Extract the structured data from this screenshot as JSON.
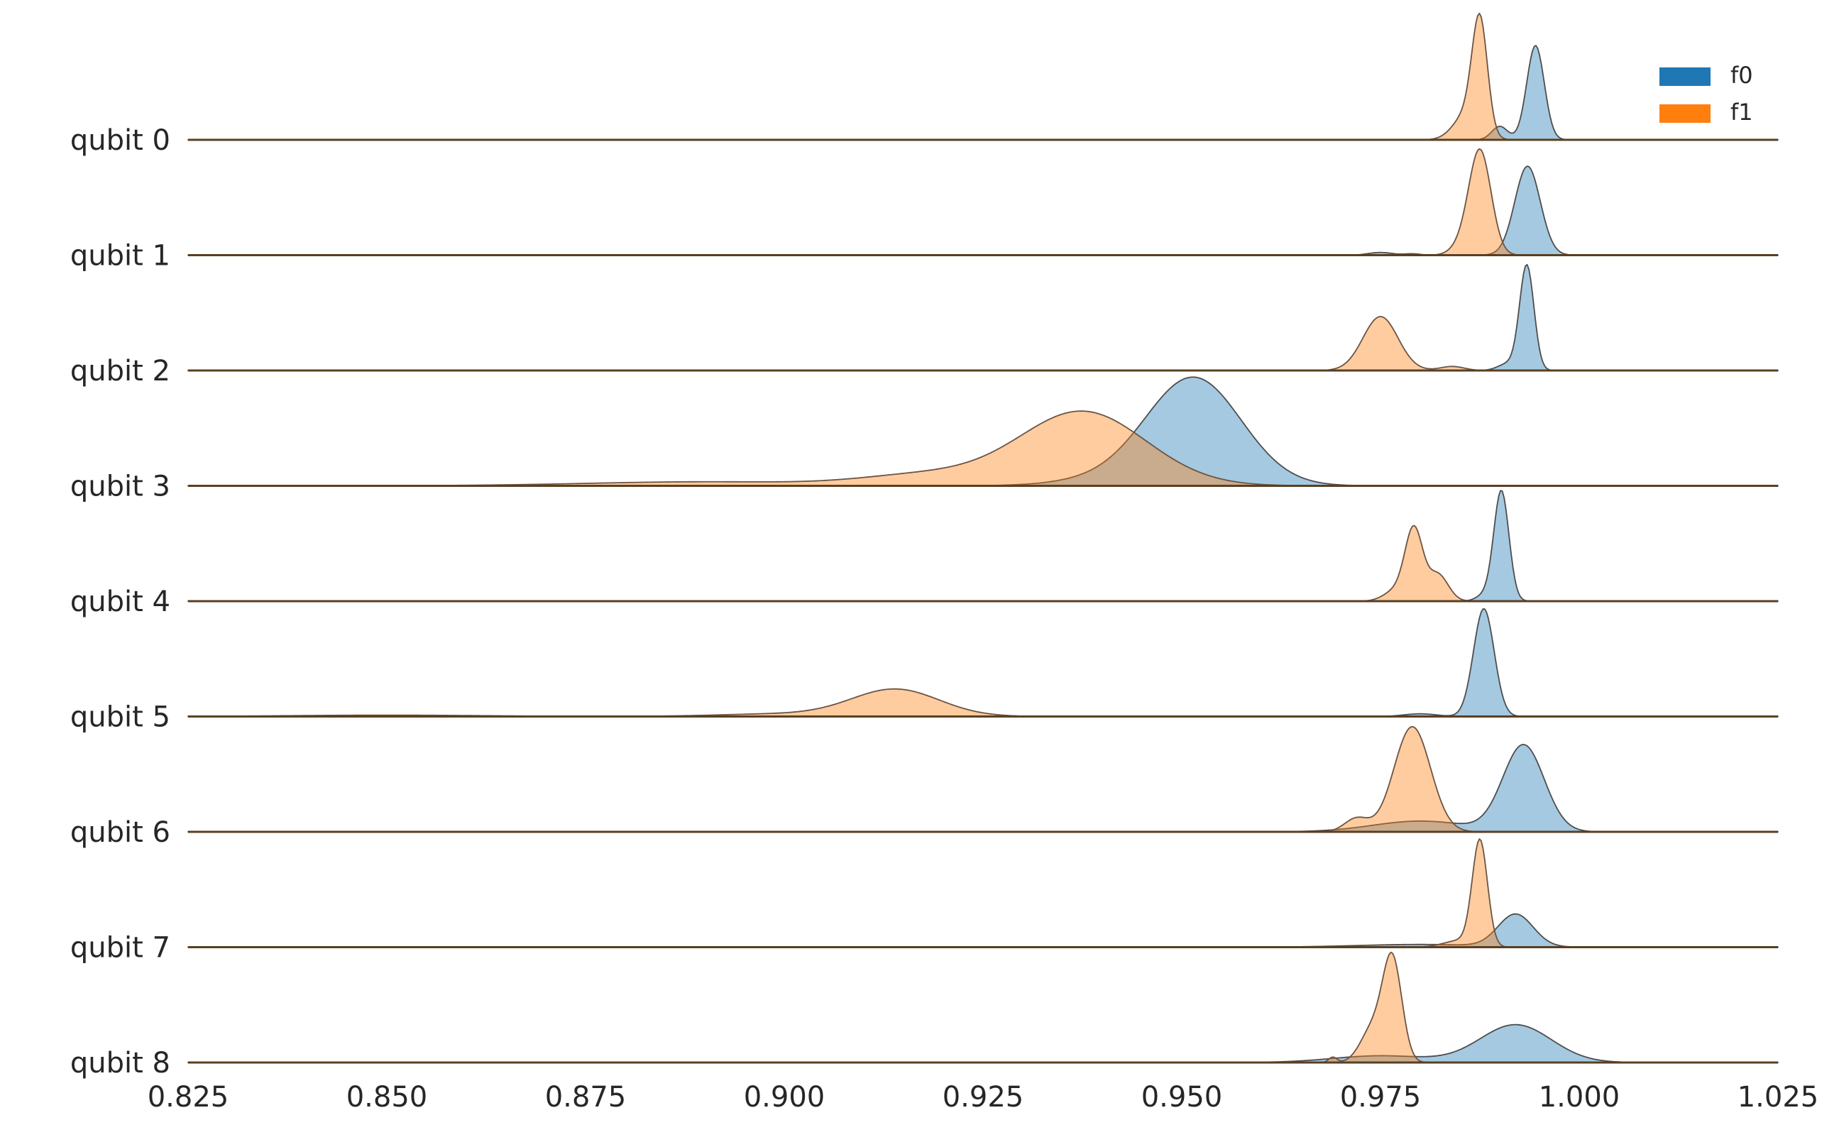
{
  "chart_data": {
    "type": "area",
    "subtype": "ridgeline",
    "title": "",
    "xlabel": "",
    "ylabel": "",
    "xlim": [
      0.825,
      1.025
    ],
    "x_ticks": [
      0.825,
      0.85,
      0.875,
      0.9,
      0.925,
      0.95,
      0.975,
      1.0,
      1.025
    ],
    "x_tick_labels": [
      "0.825",
      "0.850",
      "0.875",
      "0.900",
      "0.925",
      "0.950",
      "0.975",
      "1.000",
      "1.025"
    ],
    "grid": false,
    "legend": {
      "position": "top-right",
      "entries": [
        "f0",
        "f1"
      ]
    },
    "colors": {
      "f0": "#1f77b4",
      "f1": "#ff7f0e",
      "outline": "#4d4d4d"
    },
    "rows": [
      {
        "label": "qubit 0",
        "f0": [
          {
            "mu": 0.9945,
            "sigma": 0.0011,
            "h": 0.7
          },
          {
            "mu": 0.99,
            "sigma": 0.001,
            "h": 0.1
          }
        ],
        "f1": [
          {
            "mu": 0.9875,
            "sigma": 0.00095,
            "h": 0.8
          },
          {
            "mu": 0.986,
            "sigma": 0.0017,
            "h": 0.2
          }
        ]
      },
      {
        "label": "qubit 1",
        "f0": [
          {
            "mu": 0.9935,
            "sigma": 0.0016,
            "h": 0.66
          },
          {
            "mu": 0.975,
            "sigma": 0.0015,
            "h": 0.02
          },
          {
            "mu": 0.979,
            "sigma": 0.001,
            "h": 0.01
          }
        ],
        "f1": [
          {
            "mu": 0.9875,
            "sigma": 0.0014,
            "h": 0.78
          },
          {
            "mu": 0.985,
            "sigma": 0.0013,
            "h": 0.05
          }
        ]
      },
      {
        "label": "qubit 2",
        "f0": [
          {
            "mu": 0.9934,
            "sigma": 0.0009,
            "h": 0.78
          },
          {
            "mu": 0.991,
            "sigma": 0.0012,
            "h": 0.05
          }
        ],
        "f1": [
          {
            "mu": 0.975,
            "sigma": 0.0022,
            "h": 0.4
          },
          {
            "mu": 0.984,
            "sigma": 0.0015,
            "h": 0.03
          }
        ]
      },
      {
        "label": "qubit 3",
        "f0": [
          {
            "mu": 0.9515,
            "sigma": 0.006,
            "h": 0.8
          },
          {
            "mu": 0.94,
            "sigma": 0.006,
            "h": 0.04
          }
        ],
        "f1": [
          {
            "mu": 0.9375,
            "sigma": 0.008,
            "h": 0.55
          },
          {
            "mu": 0.918,
            "sigma": 0.008,
            "h": 0.08
          },
          {
            "mu": 0.89,
            "sigma": 0.015,
            "h": 0.03
          }
        ]
      },
      {
        "label": "qubit 4",
        "f0": [
          {
            "mu": 0.9902,
            "sigma": 0.00095,
            "h": 0.82
          },
          {
            "mu": 0.988,
            "sigma": 0.001,
            "h": 0.04
          }
        ],
        "f1": [
          {
            "mu": 0.9792,
            "sigma": 0.0011,
            "h": 0.52
          },
          {
            "mu": 0.9822,
            "sigma": 0.0013,
            "h": 0.2
          },
          {
            "mu": 0.977,
            "sigma": 0.0015,
            "h": 0.08
          }
        ]
      },
      {
        "label": "qubit 5",
        "f0": [
          {
            "mu": 0.988,
            "sigma": 0.0013,
            "h": 0.8
          },
          {
            "mu": 0.98,
            "sigma": 0.002,
            "h": 0.02
          }
        ],
        "f1": [
          {
            "mu": 0.914,
            "sigma": 0.0055,
            "h": 0.2
          },
          {
            "mu": 0.85,
            "sigma": 0.012,
            "h": 0.01
          },
          {
            "mu": 0.9,
            "sigma": 0.008,
            "h": 0.02
          }
        ]
      },
      {
        "label": "qubit 6",
        "f0": [
          {
            "mu": 0.993,
            "sigma": 0.0026,
            "h": 0.64
          },
          {
            "mu": 0.98,
            "sigma": 0.006,
            "h": 0.08
          }
        ],
        "f1": [
          {
            "mu": 0.979,
            "sigma": 0.0023,
            "h": 0.78
          },
          {
            "mu": 0.972,
            "sigma": 0.0015,
            "h": 0.1
          }
        ]
      },
      {
        "label": "qubit 7",
        "f0": [
          {
            "mu": 0.992,
            "sigma": 0.0022,
            "h": 0.24
          },
          {
            "mu": 0.98,
            "sigma": 0.008,
            "h": 0.02
          }
        ],
        "f1": [
          {
            "mu": 0.9875,
            "sigma": 0.00095,
            "h": 0.78
          },
          {
            "mu": 0.985,
            "sigma": 0.002,
            "h": 0.05
          }
        ]
      },
      {
        "label": "qubit 8",
        "f0": [
          {
            "mu": 0.992,
            "sigma": 0.0045,
            "h": 0.28
          },
          {
            "mu": 0.975,
            "sigma": 0.006,
            "h": 0.05
          }
        ],
        "f1": [
          {
            "mu": 0.9765,
            "sigma": 0.0012,
            "h": 0.75
          },
          {
            "mu": 0.974,
            "sigma": 0.0015,
            "h": 0.25
          },
          {
            "mu": 0.969,
            "sigma": 0.0005,
            "h": 0.04
          }
        ]
      }
    ]
  }
}
